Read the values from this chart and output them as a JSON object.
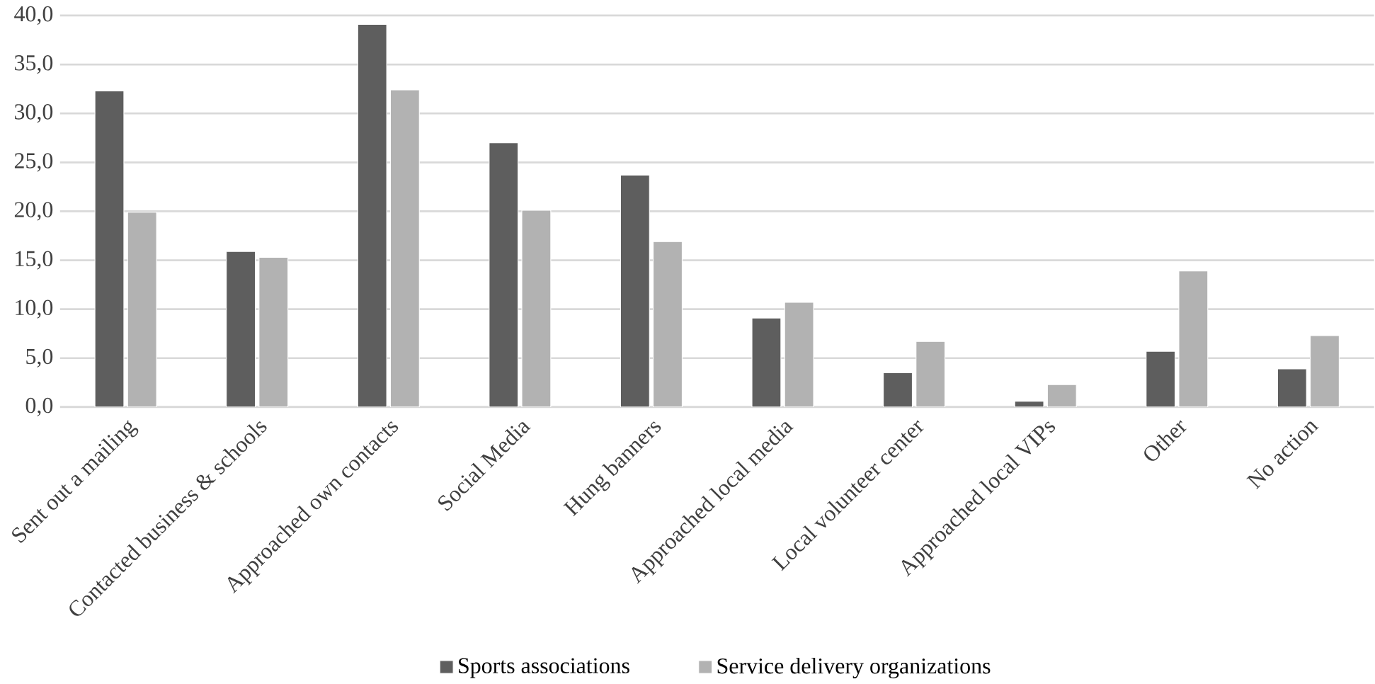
{
  "chart_data": {
    "type": "bar",
    "categories": [
      "Sent out a mailing",
      "Contacted business & schools",
      "Approached own contacts",
      "Social Media",
      "Hung banners",
      "Approached local media",
      "Local volunteer center",
      "Approached local VIPs",
      "Other",
      "No action"
    ],
    "series": [
      {
        "name": "Sports associations",
        "color": "#5e5e5e",
        "values": [
          32.3,
          15.9,
          39.1,
          27.0,
          23.7,
          9.1,
          3.5,
          0.6,
          5.7,
          3.9
        ]
      },
      {
        "name": "Service delivery organizations",
        "color": "#b2b2b2",
        "values": [
          19.9,
          15.3,
          32.4,
          20.1,
          16.9,
          10.7,
          6.7,
          2.3,
          13.9,
          7.3
        ]
      }
    ],
    "ylim": [
      0,
      40
    ],
    "yticks": [
      {
        "value": 0,
        "label": "0,0"
      },
      {
        "value": 5,
        "label": "5,0"
      },
      {
        "value": 10,
        "label": "10,0"
      },
      {
        "value": 15,
        "label": "15,0"
      },
      {
        "value": 20,
        "label": "20,0"
      },
      {
        "value": 25,
        "label": "25,0"
      },
      {
        "value": 30,
        "label": "30,0"
      },
      {
        "value": 35,
        "label": "35,0"
      },
      {
        "value": 40,
        "label": "40,0"
      }
    ],
    "grid": "y",
    "legend": "bottom"
  }
}
